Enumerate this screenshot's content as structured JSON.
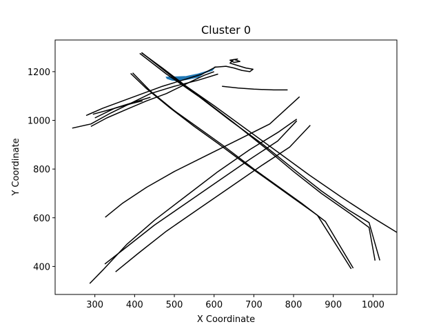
{
  "chart_data": {
    "type": "line",
    "title": "Cluster 0",
    "xlabel": "X Coordinate",
    "ylabel": "Y Coordinate",
    "xlim": [
      200,
      1060
    ],
    "ylim": [
      285,
      1330
    ],
    "xticks": [
      300,
      400,
      500,
      600,
      700,
      800,
      900,
      1000
    ],
    "yticks": [
      400,
      600,
      800,
      1000,
      1200
    ],
    "grid": false,
    "legend": "none",
    "colors": {
      "lines": "#000000",
      "highlight": "#1f77b4"
    },
    "highlight_series": [
      {
        "name": "",
        "points": [
          [
            480,
            1177
          ],
          [
            530,
            1180
          ],
          [
            560,
            1190
          ],
          [
            590,
            1205
          ],
          [
            600,
            1215
          ],
          [
            595,
            1205
          ],
          [
            575,
            1195
          ],
          [
            560,
            1178
          ],
          [
            530,
            1168
          ],
          [
            510,
            1163
          ],
          [
            495,
            1165
          ],
          [
            482,
            1172
          ]
        ]
      }
    ],
    "series": [
      {
        "points": [
          [
            417,
            1278
          ],
          [
            470,
            1215
          ],
          [
            530,
            1140
          ],
          [
            600,
            1060
          ],
          [
            680,
            965
          ],
          [
            760,
            870
          ],
          [
            840,
            775
          ],
          [
            920,
            685
          ],
          [
            1000,
            600
          ],
          [
            1060,
            540
          ]
        ]
      },
      {
        "points": [
          [
            413,
            1275
          ],
          [
            480,
            1190
          ],
          [
            560,
            1100
          ],
          [
            640,
            1000
          ],
          [
            720,
            905
          ],
          [
            800,
            800
          ],
          [
            870,
            710
          ],
          [
            940,
            630
          ],
          [
            990,
            580
          ],
          [
            1017,
            425
          ]
        ]
      },
      {
        "points": [
          [
            395,
            1195
          ],
          [
            440,
            1120
          ],
          [
            500,
            1040
          ],
          [
            560,
            970
          ],
          [
            620,
            900
          ],
          [
            700,
            800
          ],
          [
            760,
            730
          ],
          [
            820,
            660
          ],
          [
            880,
            585
          ],
          [
            950,
            393
          ]
        ]
      },
      {
        "points": [
          [
            390,
            1193
          ],
          [
            430,
            1130
          ],
          [
            490,
            1050
          ],
          [
            550,
            975
          ],
          [
            610,
            905
          ],
          [
            680,
            820
          ],
          [
            740,
            750
          ],
          [
            800,
            680
          ],
          [
            860,
            610
          ],
          [
            945,
            390
          ]
        ]
      },
      {
        "points": [
          [
            418,
            1278
          ],
          [
            490,
            1185
          ],
          [
            570,
            1090
          ],
          [
            650,
            990
          ],
          [
            730,
            885
          ],
          [
            800,
            790
          ],
          [
            870,
            700
          ],
          [
            940,
            620
          ],
          [
            990,
            560
          ],
          [
            1005,
            424
          ]
        ]
      },
      {
        "points": [
          [
            287,
            330
          ],
          [
            320,
            385
          ],
          [
            380,
            490
          ],
          [
            450,
            590
          ],
          [
            530,
            690
          ],
          [
            610,
            790
          ],
          [
            690,
            880
          ],
          [
            760,
            950
          ],
          [
            808,
            1005
          ]
        ]
      },
      {
        "points": [
          [
            325,
            410
          ],
          [
            380,
            480
          ],
          [
            450,
            570
          ],
          [
            530,
            660
          ],
          [
            610,
            750
          ],
          [
            690,
            840
          ],
          [
            760,
            915
          ],
          [
            808,
            998
          ]
        ]
      },
      {
        "points": [
          [
            352,
            378
          ],
          [
            410,
            455
          ],
          [
            480,
            545
          ],
          [
            560,
            635
          ],
          [
            640,
            725
          ],
          [
            720,
            815
          ],
          [
            790,
            890
          ],
          [
            842,
            980
          ]
        ]
      },
      {
        "points": [
          [
            326,
            602
          ],
          [
            370,
            660
          ],
          [
            430,
            725
          ],
          [
            500,
            790
          ],
          [
            580,
            855
          ],
          [
            660,
            920
          ],
          [
            740,
            985
          ],
          [
            815,
            1097
          ]
        ]
      },
      {
        "points": [
          [
            243,
            968
          ],
          [
            290,
            985
          ],
          [
            340,
            1030
          ],
          [
            390,
            1070
          ],
          [
            440,
            1110
          ],
          [
            500,
            1140
          ],
          [
            560,
            1165
          ],
          [
            610,
            1190
          ]
        ]
      },
      {
        "points": [
          [
            278,
            1020
          ],
          [
            320,
            1050
          ],
          [
            370,
            1080
          ],
          [
            420,
            1110
          ],
          [
            470,
            1140
          ],
          [
            520,
            1165
          ],
          [
            570,
            1190
          ],
          [
            605,
            1220
          ]
        ]
      },
      {
        "points": [
          [
            290,
            975
          ],
          [
            330,
            1010
          ],
          [
            380,
            1045
          ],
          [
            430,
            1080
          ],
          [
            480,
            1110
          ],
          [
            530,
            1150
          ],
          [
            575,
            1185
          ],
          [
            600,
            1200
          ]
        ]
      },
      {
        "points": [
          [
            295,
            1025
          ],
          [
            340,
            1045
          ],
          [
            395,
            1070
          ],
          [
            420,
            1080
          ]
        ]
      },
      {
        "points": [
          [
            300,
            1010
          ],
          [
            350,
            1050
          ],
          [
            400,
            1075
          ],
          [
            440,
            1095
          ]
        ]
      },
      {
        "points": [
          [
            600,
            1218
          ],
          [
            630,
            1222
          ],
          [
            650,
            1215
          ],
          [
            670,
            1205
          ],
          [
            690,
            1200
          ],
          [
            698,
            1210
          ],
          [
            680,
            1215
          ],
          [
            660,
            1225
          ],
          [
            640,
            1235
          ],
          [
            650,
            1250
          ],
          [
            665,
            1242
          ],
          [
            650,
            1238
          ],
          [
            640,
            1247
          ],
          [
            660,
            1252
          ]
        ]
      },
      {
        "points": [
          [
            620,
            1140
          ],
          [
            660,
            1133
          ],
          [
            700,
            1128
          ],
          [
            750,
            1125
          ],
          [
            785,
            1125
          ]
        ]
      }
    ]
  }
}
